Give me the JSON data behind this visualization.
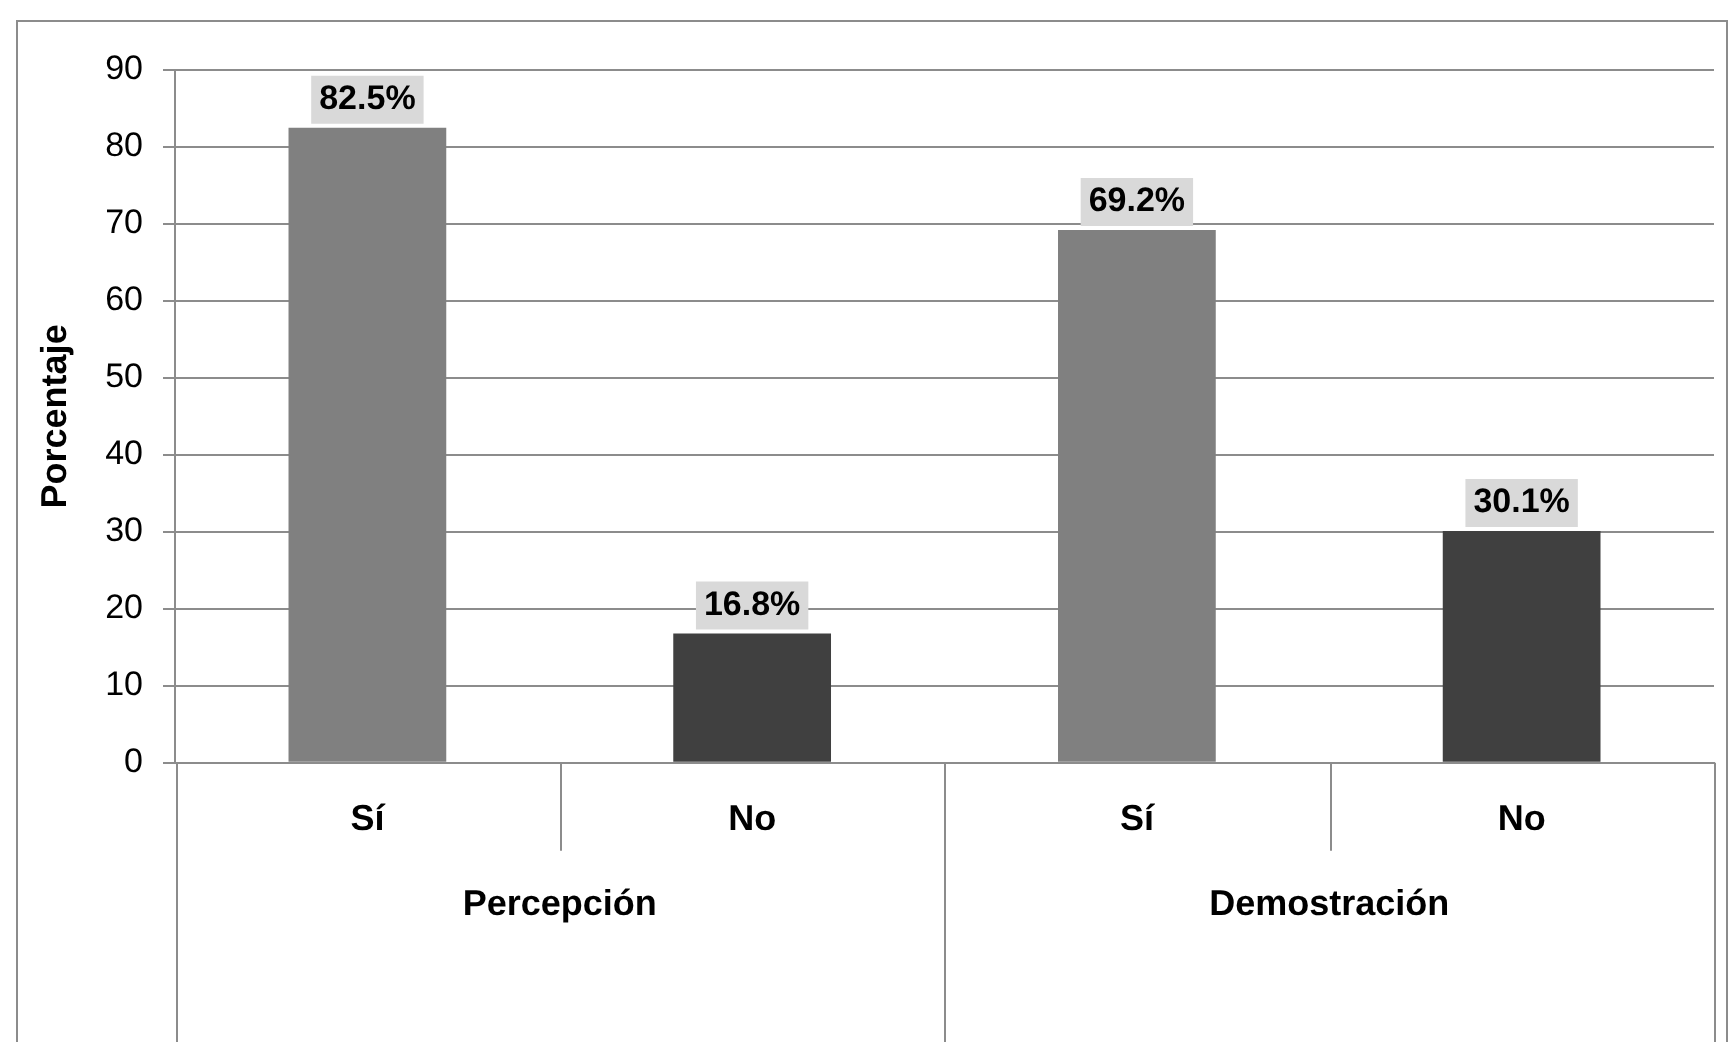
{
  "chart_data": {
    "type": "bar",
    "ylabel": "Porcentaje",
    "categories": [
      "Sí",
      "No",
      "Sí",
      "No"
    ],
    "values": [
      82.5,
      16.8,
      69.2,
      30.1
    ],
    "colors": [
      "#808080",
      "#404040",
      "#808080",
      "#404040"
    ],
    "value_labels": [
      "82.5%",
      "16.8%",
      "69.2%",
      "30.1%"
    ],
    "ylim": [
      0,
      90
    ],
    "yticks": [
      0,
      10,
      20,
      30,
      40,
      50,
      60,
      70,
      80,
      90
    ],
    "grid": "y",
    "legend": false,
    "annotations": [
      "Percepción",
      "Demostración"
    ]
  }
}
